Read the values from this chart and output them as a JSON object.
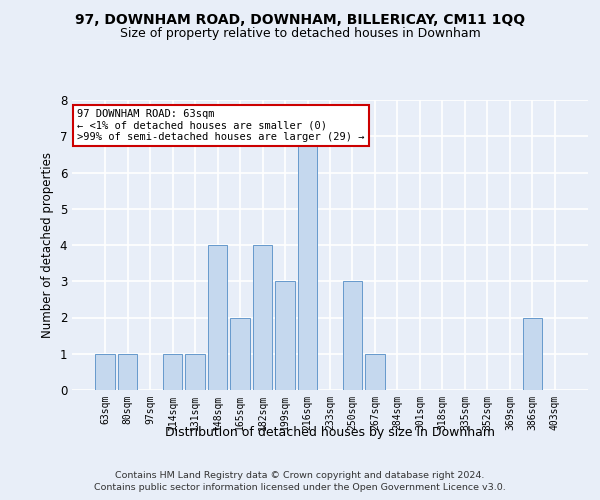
{
  "title": "97, DOWNHAM ROAD, DOWNHAM, BILLERICAY, CM11 1QQ",
  "subtitle": "Size of property relative to detached houses in Downham",
  "xlabel": "Distribution of detached houses by size in Downham",
  "ylabel": "Number of detached properties",
  "categories": [
    "63sqm",
    "80sqm",
    "97sqm",
    "114sqm",
    "131sqm",
    "148sqm",
    "165sqm",
    "182sqm",
    "199sqm",
    "216sqm",
    "233sqm",
    "250sqm",
    "267sqm",
    "284sqm",
    "301sqm",
    "318sqm",
    "335sqm",
    "352sqm",
    "369sqm",
    "386sqm",
    "403sqm"
  ],
  "values": [
    1,
    1,
    0,
    1,
    1,
    4,
    2,
    4,
    3,
    7,
    0,
    3,
    1,
    0,
    0,
    0,
    0,
    0,
    0,
    2,
    0
  ],
  "bar_color": "#c5d8ee",
  "bar_edge_color": "#6699cc",
  "bg_color": "#e8eef8",
  "grid_color": "#ffffff",
  "annotation_box_color": "#ffffff",
  "annotation_border_color": "#cc0000",
  "annotation_text_line1": "97 DOWNHAM ROAD: 63sqm",
  "annotation_text_line2": "← <1% of detached houses are smaller (0)",
  "annotation_text_line3": ">99% of semi-detached houses are larger (29) →",
  "ylim": [
    0,
    8
  ],
  "yticks": [
    0,
    1,
    2,
    3,
    4,
    5,
    6,
    7,
    8
  ],
  "footer_line1": "Contains HM Land Registry data © Crown copyright and database right 2024.",
  "footer_line2": "Contains public sector information licensed under the Open Government Licence v3.0."
}
